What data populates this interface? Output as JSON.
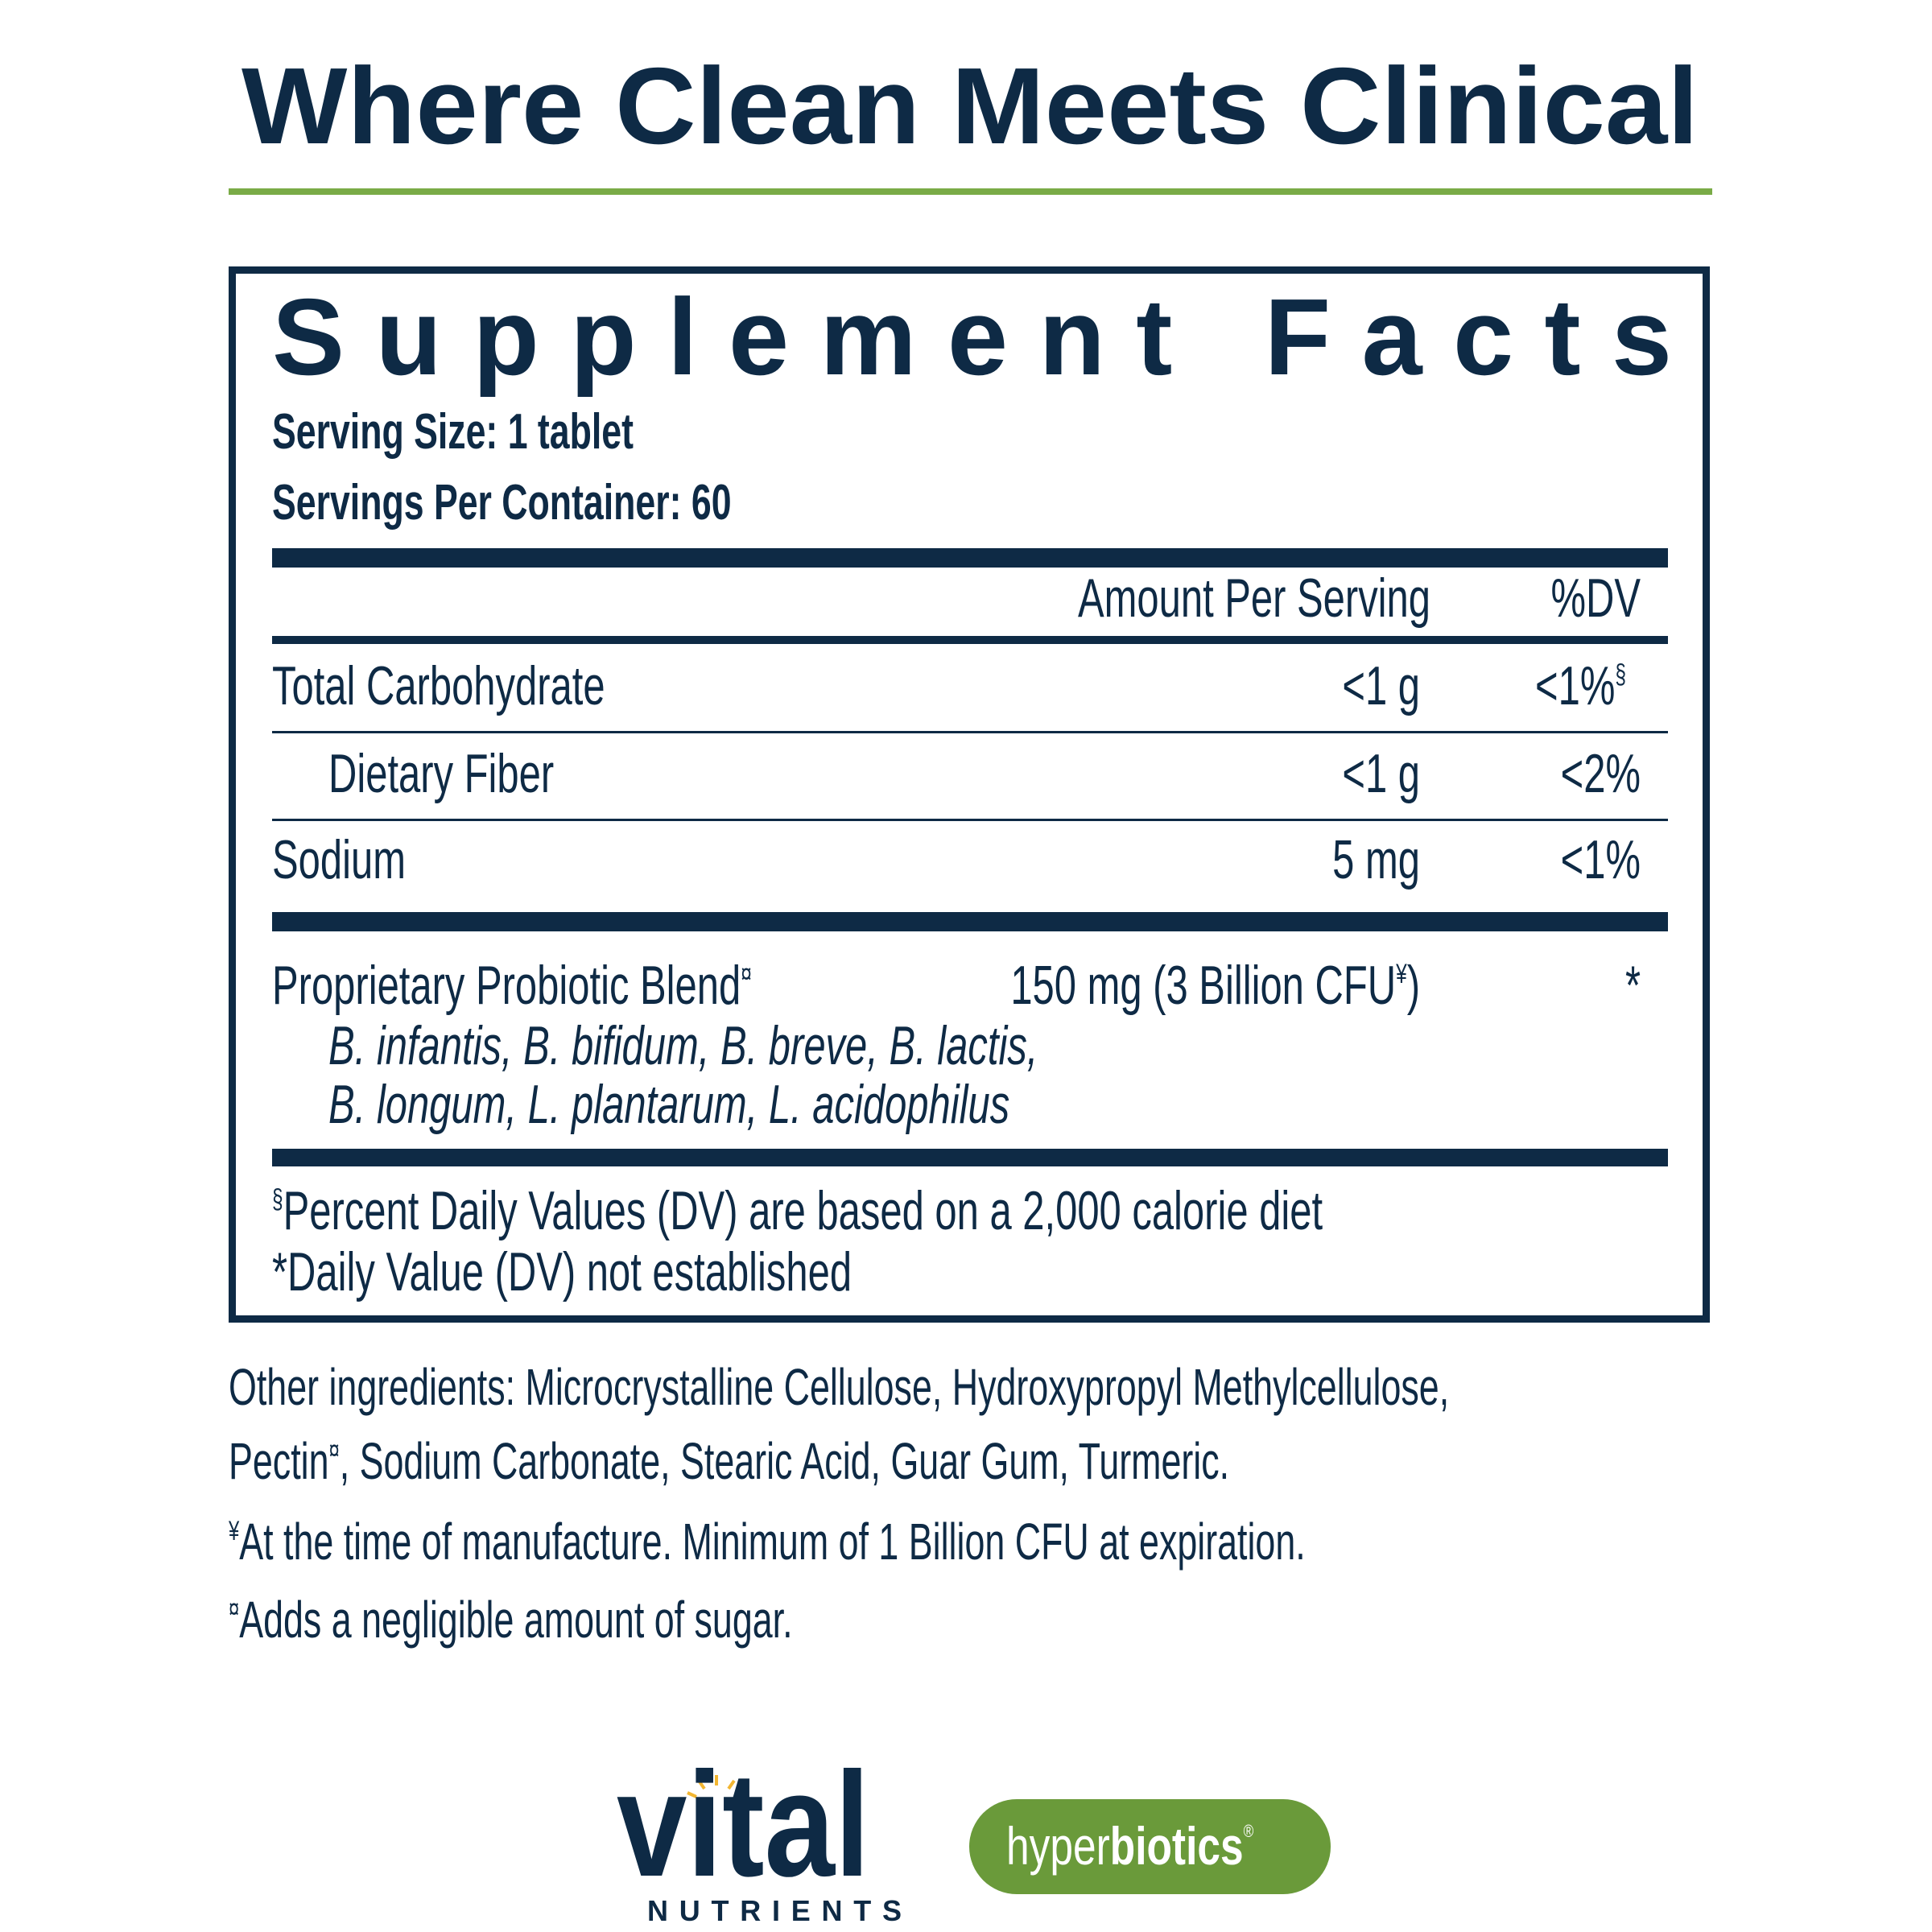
{
  "header": {
    "title": "Where Clean Meets Clinical"
  },
  "facts": {
    "title": "Supplement Facts",
    "serving_size": "Serving Size: 1 tablet",
    "servings_per_container": "Servings Per Container: 60",
    "columns": [
      "Amount Per Serving",
      "%DV"
    ],
    "rows": [
      {
        "name": "Total Carbohydrate",
        "amount": "<1 g",
        "dv": "<1%",
        "dv_mark": "§"
      },
      {
        "name": "Dietary Fiber",
        "amount": "<1 g",
        "dv": "<2%"
      },
      {
        "name": "Sodium",
        "amount": "5 mg",
        "dv": "<1%"
      }
    ],
    "blend": {
      "name": "Proprietary Probiotic Blend",
      "name_mark": "¤",
      "amount": "150 mg (3 Billion CFU",
      "amount_mark": "¥",
      "amount_end": ")",
      "dv": "*",
      "strains": [
        "B. infantis, B. bifidum, B. breve, B. lactis,",
        "B. longum, L. plantarum, L. acidophilus"
      ]
    },
    "footnotes": [
      {
        "mark": "§",
        "text": "Percent Daily Values (DV) are based on a 2,000 calorie diet"
      },
      {
        "text": "*Daily Value (DV) not established"
      }
    ]
  },
  "other": {
    "ingredients_line1": "Other ingredients: Microcrystalline Cellulose, Hydroxypropyl Methylcellulose,",
    "ingredients_line2_a": "Pectin",
    "ingredients_line2_mark": "¤",
    "ingredients_line2_b": ", Sodium Carbonate, Stearic Acid, Guar Gum, Turmeric.",
    "notes": [
      {
        "mark": "¥",
        "text": "At the time of manufacture. Minimum of 1 Billion CFU at expiration."
      },
      {
        "mark": "¤",
        "text": "Adds a negligible amount of sugar."
      }
    ]
  },
  "logos": {
    "vital": "vital",
    "nutrients": "NUTRIENTS",
    "hyper": "hyper",
    "biotics": "biotics",
    "registered": "®"
  }
}
